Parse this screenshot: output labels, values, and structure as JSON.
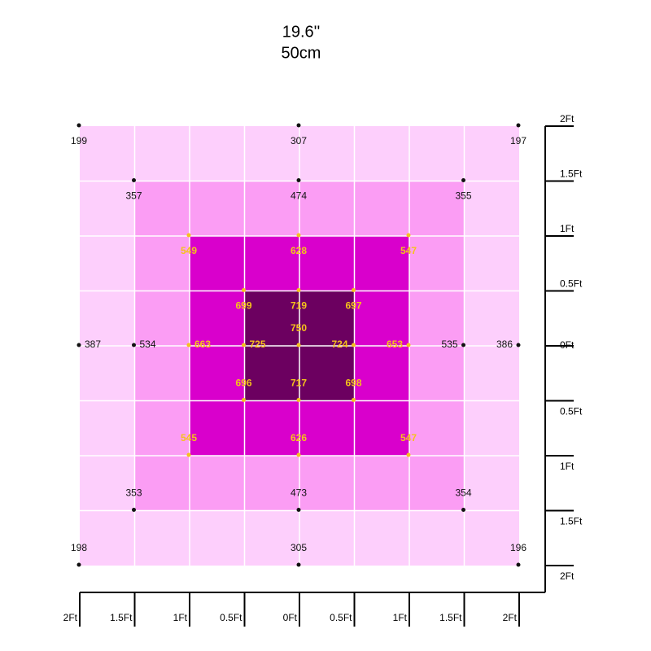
{
  "header": {
    "line1": "19.6''",
    "line2": "50cm"
  },
  "points": [
    {
      "value": 199
    },
    {
      "value": 307
    },
    {
      "value": 197
    },
    {
      "value": 357
    },
    {
      "value": 474
    },
    {
      "value": 355
    },
    {
      "value": 549
    },
    {
      "value": 628
    },
    {
      "value": 547
    },
    {
      "value": 699
    },
    {
      "value": 719
    },
    {
      "value": 697
    },
    {
      "value": 750
    },
    {
      "value": 387
    },
    {
      "value": 534
    },
    {
      "value": 663
    },
    {
      "value": 725
    },
    {
      "value": 724
    },
    {
      "value": 653
    },
    {
      "value": 535
    },
    {
      "value": 386
    },
    {
      "value": 696
    },
    {
      "value": 717
    },
    {
      "value": 698
    },
    {
      "value": 545
    },
    {
      "value": 626
    },
    {
      "value": 547
    },
    {
      "value": 353
    },
    {
      "value": 473
    },
    {
      "value": 354
    },
    {
      "value": 198
    },
    {
      "value": 305
    },
    {
      "value": 196
    }
  ],
  "x_axis": {
    "labels": [
      "2Ft",
      "1.5Ft",
      "1Ft",
      "0.5Ft",
      "0Ft",
      "0.5Ft",
      "1Ft",
      "1.5Ft",
      "2Ft"
    ]
  },
  "y_axis": {
    "labels": [
      "2Ft",
      "1.5Ft",
      "1Ft",
      "0.5Ft",
      "0Ft",
      "0.5Ft",
      "1Ft",
      "1.5Ft",
      "2Ft"
    ]
  }
}
